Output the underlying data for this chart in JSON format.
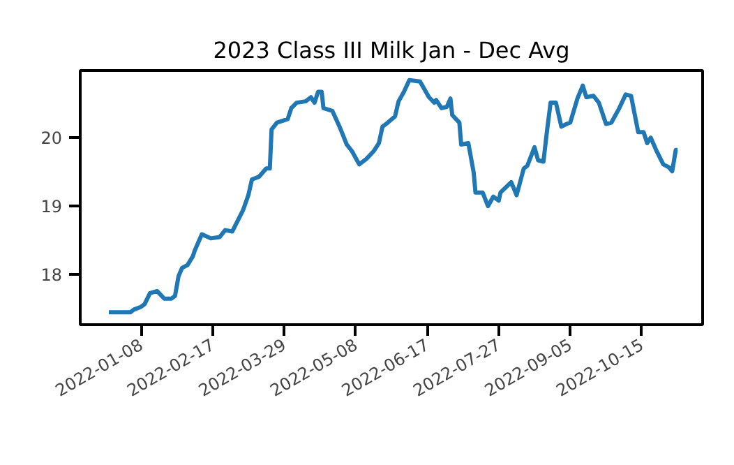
{
  "chart_data": {
    "type": "line",
    "title": "2023 Class III Milk Jan - Dec Avg",
    "x": [
      "2021-12-21",
      "2022-01-02",
      "2022-01-04",
      "2022-01-08",
      "2022-01-10",
      "2022-01-13",
      "2022-01-17",
      "2022-01-21",
      "2022-01-25",
      "2022-01-27",
      "2022-01-29",
      "2022-01-31",
      "2022-02-03",
      "2022-02-06",
      "2022-02-07",
      "2022-02-11",
      "2022-02-16",
      "2022-02-21",
      "2022-02-24",
      "2022-02-28",
      "2022-03-06",
      "2022-03-09",
      "2022-03-11",
      "2022-03-15",
      "2022-03-19",
      "2022-03-21",
      "2022-03-22",
      "2022-03-25",
      "2022-03-31",
      "2022-04-02",
      "2022-04-05",
      "2022-04-10",
      "2022-04-13",
      "2022-04-15",
      "2022-04-17",
      "2022-04-19",
      "2022-04-20",
      "2022-04-25",
      "2022-04-29",
      "2022-05-03",
      "2022-05-06",
      "2022-05-10",
      "2022-05-14",
      "2022-05-18",
      "2022-05-21",
      "2022-05-23",
      "2022-05-26",
      "2022-05-30",
      "2022-06-01",
      "2022-06-04",
      "2022-06-07",
      "2022-06-13",
      "2022-06-18",
      "2022-06-21",
      "2022-06-22",
      "2022-06-25",
      "2022-06-28",
      "2022-06-30",
      "2022-07-01",
      "2022-07-05",
      "2022-07-06",
      "2022-07-10",
      "2022-07-13",
      "2022-07-14",
      "2022-07-18",
      "2022-07-21",
      "2022-07-24",
      "2022-07-27",
      "2022-07-28",
      "2022-08-03",
      "2022-08-06",
      "2022-08-10",
      "2022-08-12",
      "2022-08-16",
      "2022-08-18",
      "2022-08-21",
      "2022-08-23",
      "2022-08-25",
      "2022-08-28",
      "2022-08-31",
      "2022-09-03",
      "2022-09-05",
      "2022-09-09",
      "2022-09-12",
      "2022-09-14",
      "2022-09-18",
      "2022-09-21",
      "2022-09-25",
      "2022-09-28",
      "2022-10-02",
      "2022-10-06",
      "2022-10-09",
      "2022-10-13",
      "2022-10-16",
      "2022-10-18",
      "2022-10-20",
      "2022-10-23",
      "2022-10-27",
      "2022-10-30",
      "2022-11-01",
      "2022-11-03",
      "2022-11-04"
    ],
    "series": [
      {
        "color": "#1f77b4",
        "values": [
          17.45,
          17.45,
          17.49,
          17.53,
          17.57,
          17.73,
          17.76,
          17.65,
          17.65,
          17.69,
          17.98,
          18.1,
          18.14,
          18.27,
          18.35,
          18.59,
          18.53,
          18.55,
          18.65,
          18.63,
          18.94,
          19.16,
          19.39,
          19.43,
          19.55,
          19.55,
          20.12,
          20.22,
          20.27,
          20.43,
          20.51,
          20.53,
          20.59,
          20.51,
          20.67,
          20.67,
          20.43,
          20.39,
          20.16,
          19.9,
          19.8,
          19.61,
          19.69,
          19.8,
          19.92,
          20.16,
          20.22,
          20.31,
          20.53,
          20.67,
          20.84,
          20.82,
          20.59,
          20.51,
          20.55,
          20.43,
          20.45,
          20.57,
          20.33,
          20.22,
          19.9,
          19.92,
          19.49,
          19.2,
          19.2,
          19.0,
          19.14,
          19.08,
          19.2,
          19.35,
          19.16,
          19.55,
          19.59,
          19.86,
          19.67,
          19.65,
          20.1,
          20.51,
          20.51,
          20.16,
          20.2,
          20.22,
          20.57,
          20.76,
          20.59,
          20.61,
          20.51,
          20.2,
          20.22,
          20.41,
          20.63,
          20.61,
          20.08,
          20.08,
          19.92,
          20.0,
          19.82,
          19.61,
          19.57,
          19.51,
          19.82,
          19.82
        ]
      }
    ],
    "xlim": [
      "2021-12-05",
      "2022-11-18"
    ],
    "xticks": [
      "2022-01-08",
      "2022-02-17",
      "2022-03-29",
      "2022-05-08",
      "2022-06-17",
      "2022-07-27",
      "2022-09-05",
      "2022-10-15"
    ],
    "ylim": [
      17.27,
      20.98
    ],
    "yticks": [
      18,
      19,
      20
    ],
    "grid": false,
    "line_style": "solid",
    "marker": "none"
  }
}
